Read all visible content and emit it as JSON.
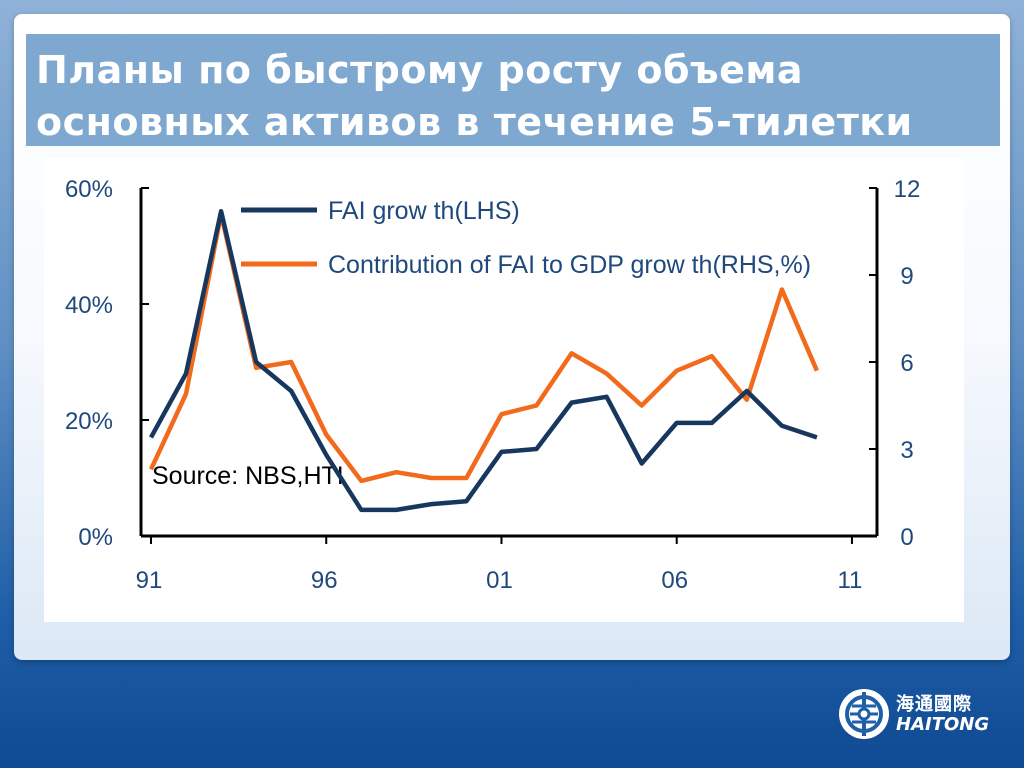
{
  "slide": {
    "title_line1": "Планы по быстрому росту объема",
    "title_line2": "основных активов в течение 5-тилетки"
  },
  "brand": {
    "name_cn": "海通國際",
    "name_en": "HAITONG",
    "logo_icon": "haitong-logo-icon"
  },
  "colors": {
    "fai_growth": "#17375e",
    "fai_contribution": "#f26b1d",
    "axis_text": "#1f497d"
  },
  "chart_data": {
    "type": "line",
    "title": "",
    "annotation": "Source: NBS,HTI",
    "x_tick_labels": [
      "91",
      "96",
      "01",
      "06",
      "11"
    ],
    "x_tick_values": [
      1991,
      1996,
      2001,
      2006,
      2011
    ],
    "xlim": [
      1991,
      2012
    ],
    "left_axis": {
      "ticks": [
        "0%",
        "20%",
        "40%",
        "60%"
      ],
      "ylim": [
        0,
        60
      ],
      "unit": "%"
    },
    "right_axis": {
      "ticks": [
        "0",
        "3",
        "6",
        "9",
        "12"
      ],
      "ylim": [
        0,
        12
      ]
    },
    "legend_position": "top",
    "series": [
      {
        "name": "FAI grow th(LHS)",
        "axis": "left",
        "x": [
          1991,
          1992,
          1993,
          1994,
          1995,
          1996,
          1997,
          1998,
          1999,
          2000,
          2001,
          2002,
          2003,
          2004,
          2005,
          2006,
          2007,
          2008,
          2009,
          2010
        ],
        "values": [
          17,
          28,
          56,
          30,
          25,
          14,
          4.5,
          4.5,
          5.5,
          6,
          14.5,
          15,
          23,
          24,
          12.5,
          19.5,
          19.5,
          25,
          19,
          17
        ]
      },
      {
        "name": "Contribution of FAI to GDP grow th(RHS,%)",
        "axis": "right",
        "x": [
          1991,
          1992,
          1993,
          1994,
          1995,
          1996,
          1997,
          1998,
          1999,
          2000,
          2001,
          2002,
          2003,
          2004,
          2005,
          2006,
          2007,
          2008,
          2009,
          2010
        ],
        "values": [
          2.3,
          4.9,
          11.1,
          5.8,
          6.0,
          3.5,
          1.9,
          2.2,
          2.0,
          2.0,
          4.2,
          4.5,
          6.3,
          5.6,
          4.5,
          5.7,
          6.2,
          4.7,
          8.5,
          5.7
        ]
      }
    ]
  }
}
